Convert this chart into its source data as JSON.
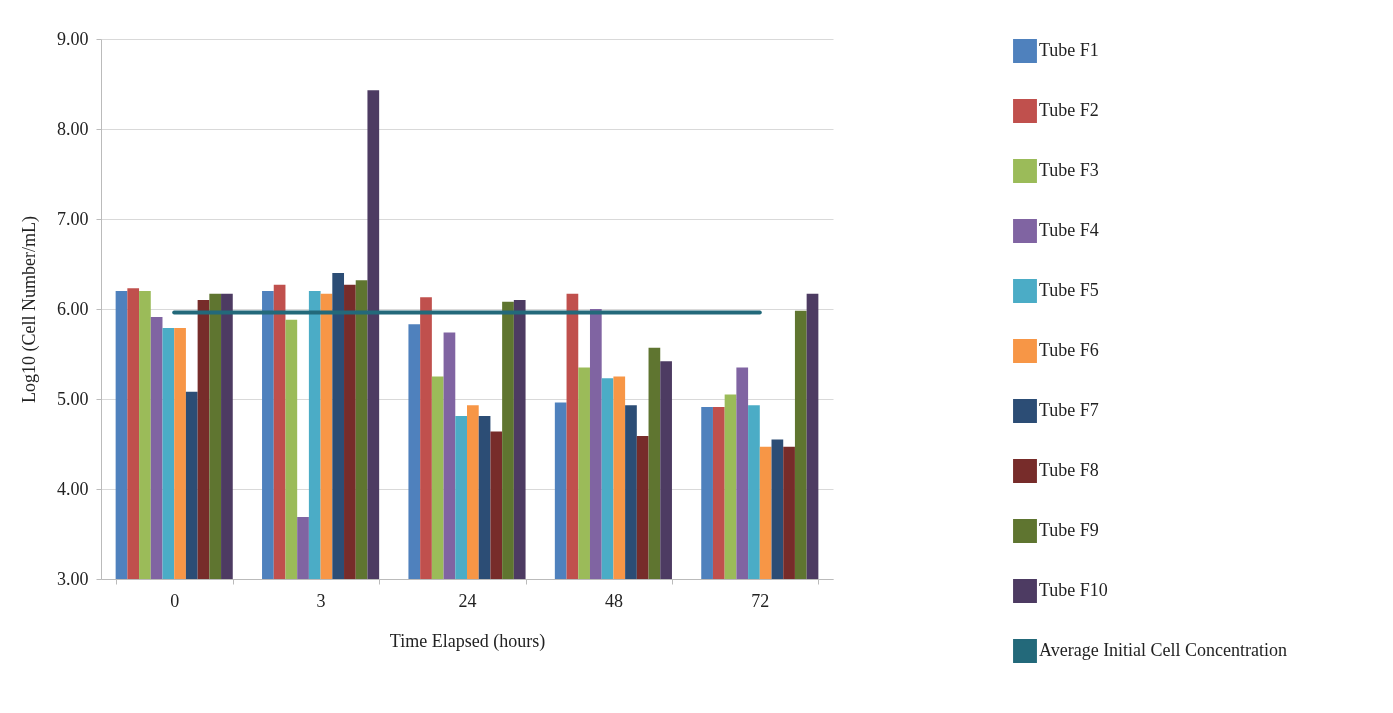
{
  "chart_data": {
    "type": "bar",
    "xlabel": "Time Elapsed (hours)",
    "ylabel": "Log10 (Cell Number/mL)",
    "categories": [
      "0",
      "3",
      "24",
      "48",
      "72"
    ],
    "ylim": [
      3,
      9
    ],
    "yticks": [
      {
        "value": 3,
        "label": "3.00"
      },
      {
        "value": 4,
        "label": "4.00"
      },
      {
        "value": 5,
        "label": "5.00"
      },
      {
        "value": 6,
        "label": "6.00"
      },
      {
        "value": 7,
        "label": "7.00"
      },
      {
        "value": 8,
        "label": "8.00"
      },
      {
        "value": 9,
        "label": "9.00"
      }
    ],
    "grid": "y",
    "legend": "right",
    "series": [
      {
        "name": "Tube F1",
        "color": "#4f81bd",
        "values": [
          6.2,
          6.2,
          5.83,
          4.96,
          4.91
        ]
      },
      {
        "name": "Tube F2",
        "color": "#c0504d",
        "values": [
          6.23,
          6.27,
          6.13,
          6.17,
          4.91
        ]
      },
      {
        "name": "Tube F3",
        "color": "#9bbb59",
        "values": [
          6.2,
          5.88,
          5.25,
          5.35,
          5.05
        ]
      },
      {
        "name": "Tube F4",
        "color": "#8064a2",
        "values": [
          5.91,
          3.69,
          5.74,
          6.0,
          5.35
        ]
      },
      {
        "name": "Tube F5",
        "color": "#4bacc6",
        "values": [
          5.79,
          6.2,
          4.81,
          5.23,
          4.93
        ]
      },
      {
        "name": "Tube F6",
        "color": "#f79646",
        "values": [
          5.79,
          6.17,
          4.93,
          5.25,
          4.47
        ]
      },
      {
        "name": "Tube F7",
        "color": "#2c4d75",
        "values": [
          5.08,
          6.4,
          4.81,
          4.93,
          4.55
        ]
      },
      {
        "name": "Tube F8",
        "color": "#772c2a",
        "values": [
          6.1,
          6.27,
          4.64,
          4.59,
          4.47
        ]
      },
      {
        "name": "Tube F9",
        "color": "#5f7530",
        "values": [
          6.17,
          6.32,
          6.08,
          5.57,
          5.98
        ]
      },
      {
        "name": "Tube F10",
        "color": "#4d3b62",
        "values": [
          6.17,
          8.43,
          6.1,
          5.42,
          6.17
        ]
      },
      {
        "name": "Average Initial Cell Concentration",
        "type": "line",
        "color": "#23697a",
        "values": [
          5.96,
          5.96,
          5.96,
          5.96,
          5.96
        ]
      }
    ]
  }
}
